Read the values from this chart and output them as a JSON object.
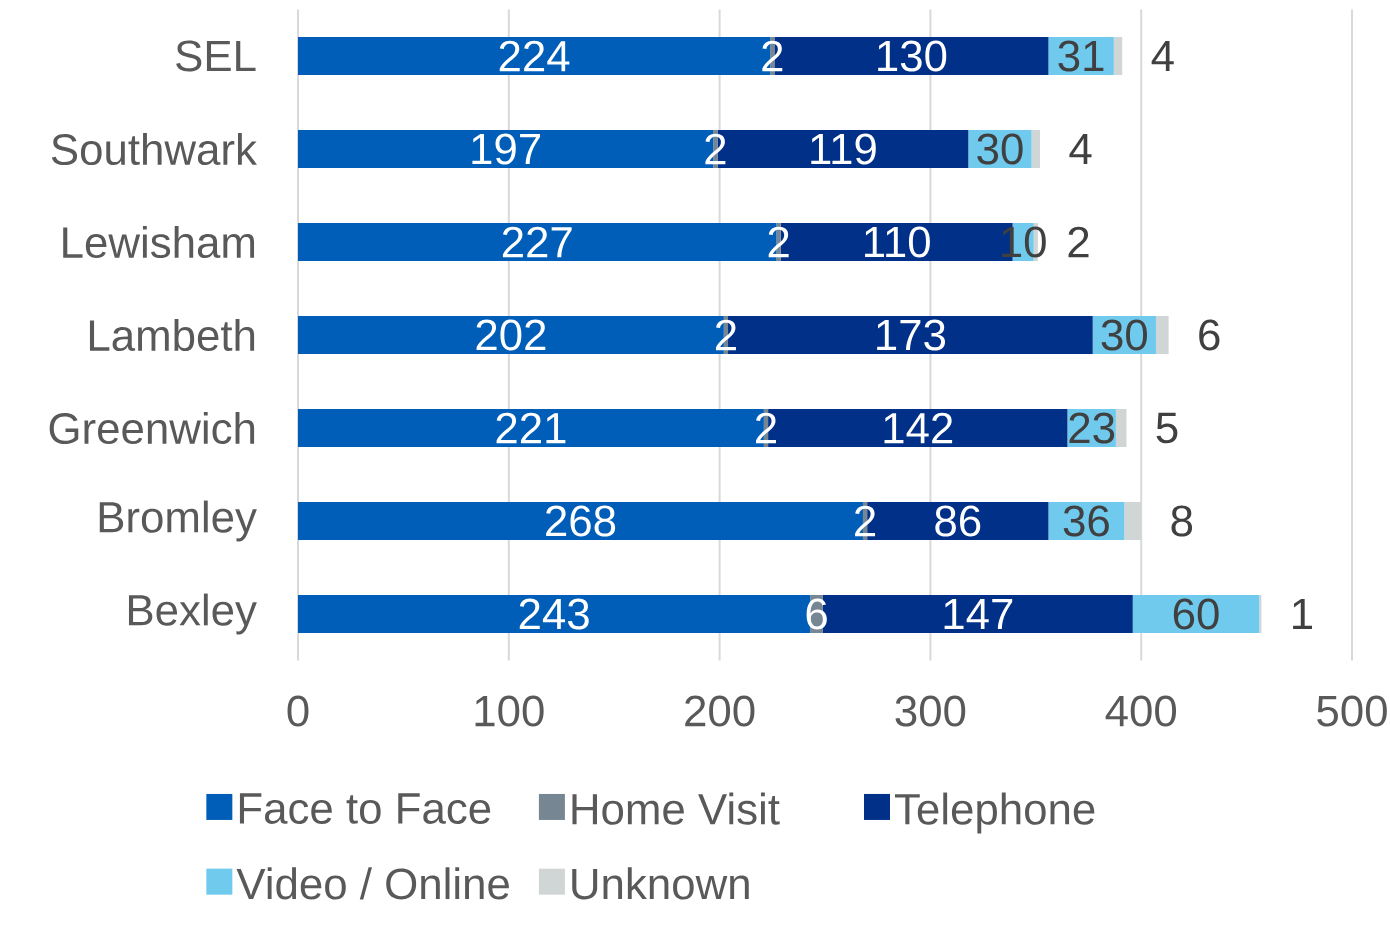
{
  "chart_data": {
    "type": "bar",
    "orientation": "horizontal",
    "stacked": true,
    "categories": [
      "SEL",
      "Southwark",
      "Lewisham",
      "Lambeth",
      "Greenwich",
      "Bromley",
      "Bexley"
    ],
    "series": [
      {
        "name": "Face to Face",
        "color": "#005eb8",
        "values": [
          224,
          197,
          227,
          202,
          221,
          268,
          243
        ]
      },
      {
        "name": "Home Visit",
        "color": "#768692",
        "values": [
          2,
          2,
          2,
          2,
          2,
          2,
          6
        ]
      },
      {
        "name": "Telephone",
        "color": "#003087",
        "values": [
          130,
          119,
          110,
          173,
          142,
          86,
          147
        ]
      },
      {
        "name": "Video / Online",
        "color": "#6fcaee",
        "values": [
          31,
          30,
          10,
          30,
          23,
          36,
          60
        ]
      },
      {
        "name": "Unknown",
        "color": "#d0d5d5",
        "values": [
          4,
          4,
          2,
          6,
          5,
          8,
          1
        ]
      }
    ],
    "xlim": [
      0,
      500
    ],
    "xticks": [
      0,
      100,
      200,
      300,
      400,
      500
    ],
    "grid": "x",
    "legend": "bottom",
    "data_labels": true
  }
}
